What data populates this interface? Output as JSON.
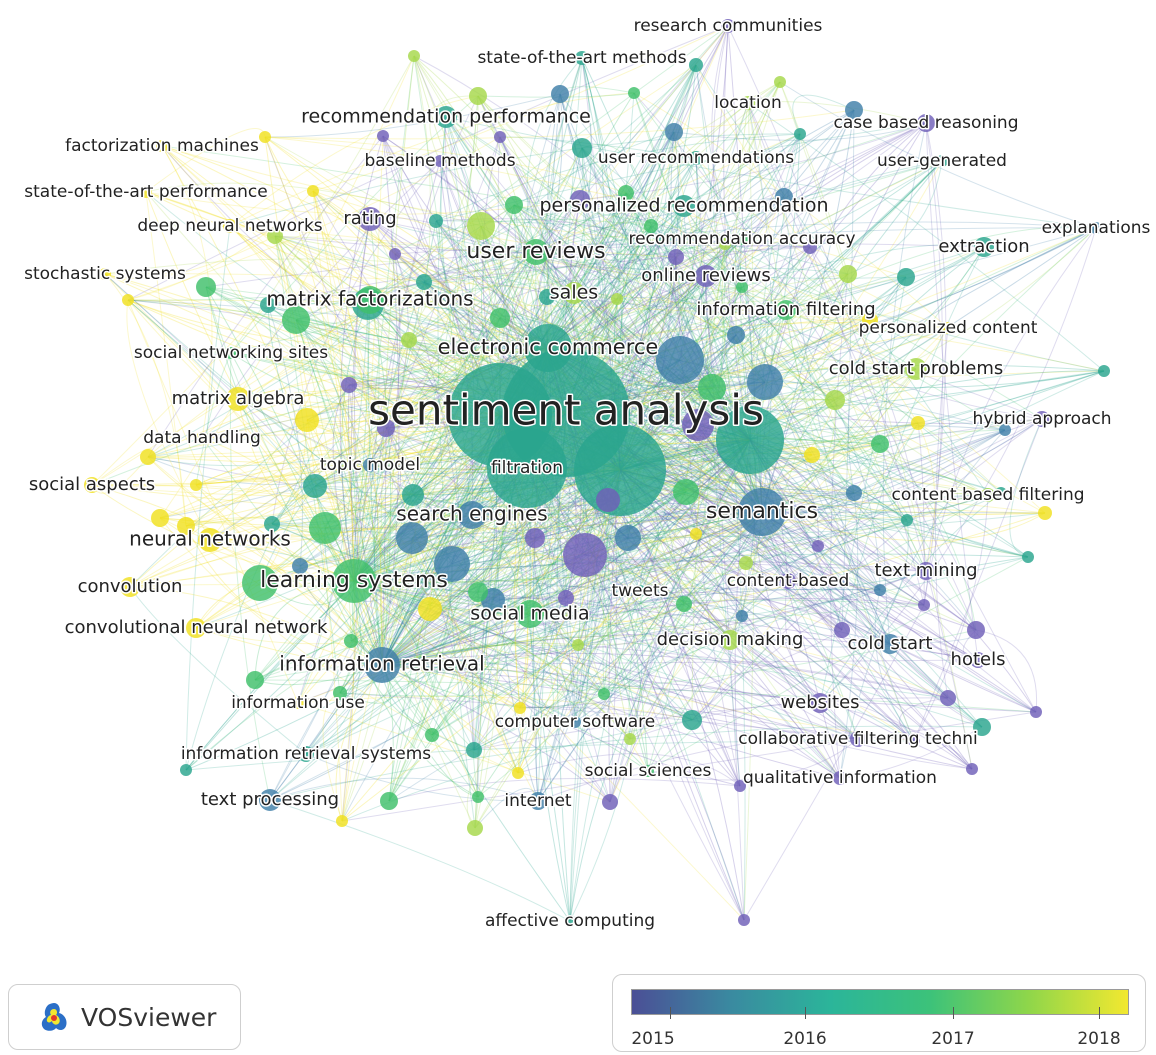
{
  "app": {
    "name": "VOSviewer",
    "logo_icon": "vosviewer-logo-icon"
  },
  "legend": {
    "ticks": [
      "2015",
      "2016",
      "2017",
      "2018"
    ],
    "gradient": [
      "#4b4f96",
      "#3a8aa0",
      "#2bb59a",
      "#3cc27a",
      "#8fd64a",
      "#f2e830"
    ]
  },
  "colors": {
    "purple": "#6f5fb8",
    "blue": "#3f7fa8",
    "teal": "#2aa58e",
    "green": "#3fbf6a",
    "lime": "#a6d84a",
    "yellow": "#f0e020"
  },
  "labels": {
    "research_communities": "research communities",
    "state_of_the_art_methods": "state-of-the-art methods",
    "location": "location",
    "recommendation_performance": "recommendation performance",
    "case_based_reasoning": "case based reasoning",
    "factorization_machines": "factorization machines",
    "baseline_methods": "baseline methods",
    "user_recommendations": "user recommendations",
    "user_generated": "user-generated",
    "state_of_the_art_performance": "state-of-the-art performance",
    "personalized_recommendation": "personalized recommendation",
    "deep_neural_networks": "deep neural networks",
    "rating": "rating",
    "recommendation_accuracy": "recommendation accuracy",
    "explanations": "explanations",
    "user_reviews": "user reviews",
    "extraction": "extraction",
    "stochastic_systems": "stochastic systems",
    "online_reviews": "online reviews",
    "sales": "sales",
    "matrix_factorizations": "matrix factorizations",
    "information_filtering": "information filtering",
    "personalized_content": "personalized content",
    "electronic_commerce": "electronic commerce",
    "social_networking_sites": "social networking sites",
    "cold_start_problems": "cold start problems",
    "matrix_algebra": "matrix algebra",
    "sentiment_analysis": "sentiment analysis",
    "hybrid_approach": "hybrid approach",
    "data_handling": "data handling",
    "topic_model": "topic model",
    "filtration": "filtration",
    "social_aspects": "social aspects",
    "content_based_filtering": "content based filtering",
    "search_engines": "search engines",
    "semantics": "semantics",
    "neural_networks": "neural networks",
    "text_mining": "text mining",
    "convolution": "convolution",
    "learning_systems": "learning systems",
    "content_based": "content-based",
    "tweets": "tweets",
    "social_media": "social media",
    "convolutional_neural_network": "convolutional neural network",
    "decision_making": "decision making",
    "cold_start": "cold start",
    "hotels": "hotels",
    "information_retrieval": "information retrieval",
    "information_use": "information use",
    "websites": "websites",
    "computer_software": "computer software",
    "collaborative_filtering_techni": "collaborative filtering techni",
    "information_retrieval_systems": "information retrieval systems",
    "social_sciences": "social sciences",
    "qualitative_information": "qualitative information",
    "text_processing": "text processing",
    "internet": "internet",
    "affective_computing": "affective computing"
  }
}
